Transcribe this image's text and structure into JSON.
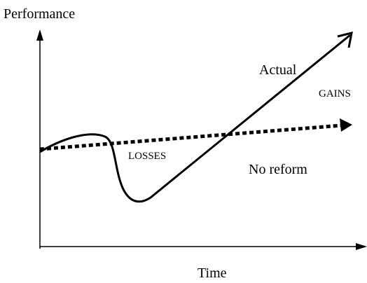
{
  "axes": {
    "y_label": "Performance",
    "x_label": "Time"
  },
  "curves": {
    "actual": "Actual",
    "no_reform": "No reform"
  },
  "annotations": {
    "gains": "GAINS",
    "losses": "LOSSES"
  }
}
